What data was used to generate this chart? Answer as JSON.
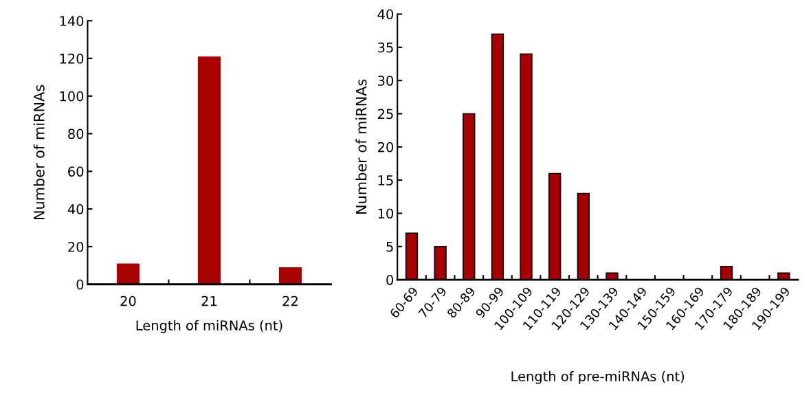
{
  "chart_data": [
    {
      "type": "bar",
      "xlabel": "Length of miRNAs (nt)",
      "ylabel": "Number of miRNAs",
      "categories": [
        "20",
        "21",
        "22"
      ],
      "values": [
        11,
        121,
        9
      ],
      "color": "#a80000",
      "ylim": [
        0,
        140
      ],
      "yticks": [
        0,
        20,
        40,
        60,
        80,
        100,
        120,
        140
      ],
      "grid": false,
      "legend": false
    },
    {
      "type": "bar",
      "xlabel": "Length of pre-miRNAs (nt)",
      "ylabel": "Number of miRNAs",
      "categories": [
        "60-69",
        "70-79",
        "80-89",
        "90-99",
        "100-109",
        "110-119",
        "120-129",
        "130-139",
        "140-149",
        "150-159",
        "160-169",
        "170-179",
        "180-189",
        "190-199"
      ],
      "values": [
        7,
        5,
        25,
        37,
        34,
        16,
        13,
        1,
        0,
        0,
        0,
        2,
        0,
        1
      ],
      "color": "#a80000",
      "ylim": [
        0,
        40
      ],
      "yticks": [
        0,
        5,
        10,
        15,
        20,
        25,
        30,
        35,
        40
      ],
      "grid": false,
      "legend": false
    }
  ]
}
